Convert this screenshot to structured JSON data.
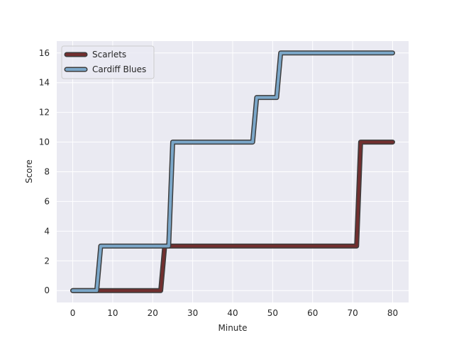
{
  "chart_data": {
    "type": "line",
    "title": "",
    "xlabel": "Minute",
    "ylabel": "Score",
    "xlim": [
      -4,
      84
    ],
    "ylim": [
      -0.8,
      16.8
    ],
    "x_ticks": [
      0,
      10,
      20,
      30,
      40,
      50,
      60,
      70,
      80
    ],
    "y_ticks": [
      0,
      2,
      4,
      6,
      8,
      10,
      12,
      14,
      16
    ],
    "grid": true,
    "legend_position": "top-left",
    "series": [
      {
        "name": "Scarlets",
        "color": "#722F2F",
        "points": [
          [
            0,
            0
          ],
          [
            22,
            0
          ],
          [
            23,
            3
          ],
          [
            71,
            3
          ],
          [
            72,
            10
          ],
          [
            80,
            10
          ]
        ]
      },
      {
        "name": "Cardiff Blues",
        "color": "#7BA7C9",
        "points": [
          [
            0,
            0
          ],
          [
            6,
            0
          ],
          [
            7,
            3
          ],
          [
            24,
            3
          ],
          [
            25,
            10
          ],
          [
            45,
            10
          ],
          [
            46,
            13
          ],
          [
            51,
            13
          ],
          [
            52,
            16
          ],
          [
            80,
            16
          ]
        ]
      }
    ]
  }
}
